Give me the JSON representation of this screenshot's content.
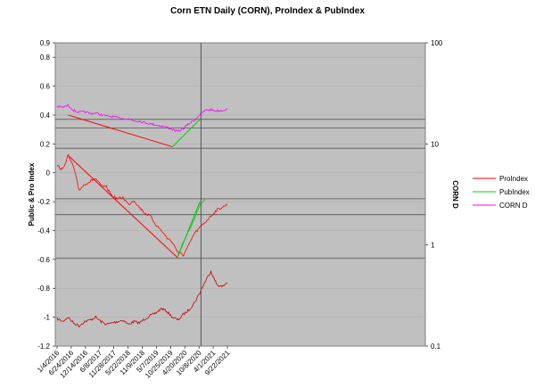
{
  "chart_data": {
    "type": "line",
    "title": "Corn ETN Daily (CORN), ProIndex & PubIndex",
    "ylabel": "Public & Pro Index",
    "y2label": "CORN D",
    "ylim": [
      -1.2,
      0.9
    ],
    "yticks": [
      "0.9",
      "0.8",
      "0.6",
      "0.4",
      "0.2",
      "0",
      "-0.2",
      "-0.4",
      "-0.6",
      "-0.8",
      "-1",
      "-1.2"
    ],
    "y2scale": "log",
    "y2lim": [
      0.1,
      100
    ],
    "y2ticks": [
      "100",
      "10",
      "1",
      "0.1"
    ],
    "xticks": [
      "1/4/2016",
      "6/24/2016",
      "12/14/2016",
      "6/8/2017",
      "11/28/2017",
      "5/22/2018",
      "11/9/2018",
      "5/7/2019",
      "10/25/2019",
      "4/20/2020",
      "10/8/2020",
      "4/1/2021",
      "9/22/2021"
    ],
    "grid": "horizontal",
    "legend_position": "right",
    "colors": {
      "plot_bg": "#c0c0c0",
      "pro": "#ff0000",
      "pub": "#00cc00",
      "corn": "#ff00ff",
      "bottom_series": "#cc0000",
      "guide": "#555555"
    },
    "series": [
      {
        "name": "ProIndex",
        "values": [
          0.05,
          0.02,
          0.12,
          0.04,
          -0.12,
          -0.08,
          -0.06,
          -0.04,
          -0.09,
          -0.1,
          -0.16,
          -0.18,
          -0.17,
          -0.22,
          -0.19,
          -0.24,
          -0.28,
          -0.3,
          -0.36,
          -0.4,
          -0.45,
          -0.48,
          -0.55,
          -0.57,
          -0.5,
          -0.42,
          -0.38,
          -0.34,
          -0.3,
          -0.26,
          -0.24,
          -0.22
        ]
      },
      {
        "name": "PubIndex",
        "values": [
          null,
          null,
          null,
          null,
          null,
          null,
          null,
          null,
          null,
          null,
          null,
          null,
          null,
          null,
          null,
          null,
          null,
          null,
          null,
          null,
          null,
          null,
          -0.57,
          -0.48,
          -0.4,
          -0.32,
          -0.22,
          -0.18
        ]
      },
      {
        "name": "CORN D",
        "values": [
          23.5,
          23.0,
          24.0,
          21.5,
          20.5,
          20.8,
          20.0,
          20.2,
          19.5,
          18.8,
          18.6,
          18.2,
          17.9,
          17.6,
          17.0,
          16.8,
          16.2,
          15.8,
          15.4,
          15.0,
          14.6,
          13.9,
          13.2,
          14.2,
          15.8,
          17.2,
          19.5,
          21.5,
          21.8,
          21.2,
          21.5,
          22.0
        ]
      },
      {
        "name": "",
        "values": [
          -1.01,
          -1.03,
          -1.0,
          -1.04,
          -1.06,
          -1.03,
          -1.02,
          -1.0,
          -1.03,
          -1.05,
          -1.04,
          -1.03,
          -1.02,
          -1.05,
          -1.03,
          -1.04,
          -1.01,
          -0.99,
          -0.97,
          -0.94,
          -0.96,
          -1.0,
          -1.02,
          -0.98,
          -0.95,
          -0.9,
          -0.83,
          -0.75,
          -0.68,
          -0.77,
          -0.79,
          -0.76
        ]
      }
    ],
    "trendlines": [
      {
        "series": "ProIndex",
        "from": [
          2,
          0.12
        ],
        "to": [
          22,
          -0.59
        ]
      },
      {
        "series": "ProIndex",
        "from": [
          2,
          0.4
        ],
        "to": [
          21,
          0.18
        ]
      },
      {
        "series": "PubIndex",
        "from": [
          21,
          0.18
        ],
        "to": [
          26,
          0.37
        ]
      },
      {
        "series": "PubIndex",
        "from": [
          22,
          -0.58
        ],
        "to": [
          26,
          -0.2
        ]
      }
    ],
    "hlines": [
      0.37,
      0.31,
      0.17,
      -0.18,
      -0.29,
      -0.59
    ],
    "vline_index": 26.2
  }
}
